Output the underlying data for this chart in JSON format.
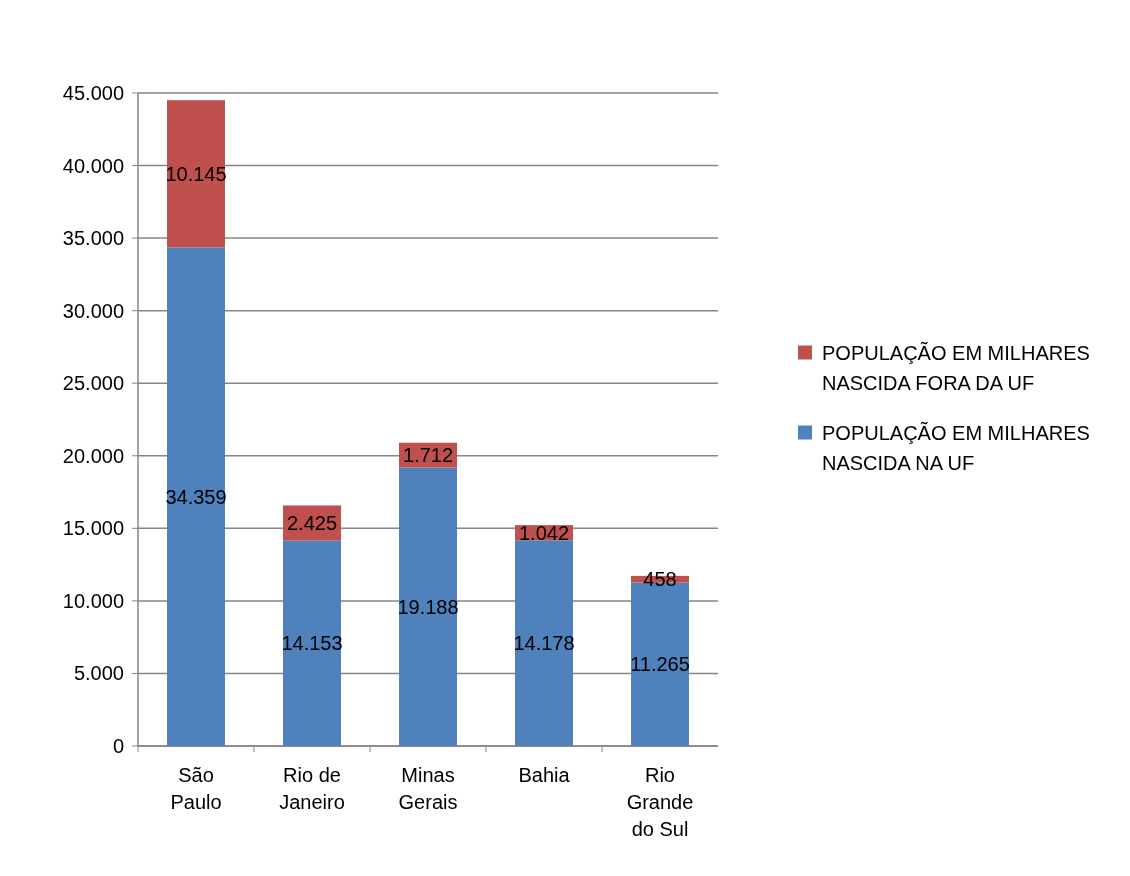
{
  "chart_data": {
    "type": "bar",
    "stacked": true,
    "categories": [
      "São Paulo",
      "Rio de Janeiro",
      "Minas Gerais",
      "Bahia",
      "Rio Grande do Sul"
    ],
    "series": [
      {
        "name": "POPULAÇÃO EM MILHARES NASCIDA NA UF",
        "color": "#4f81bd",
        "values": [
          34359,
          14153,
          19188,
          14178,
          11265
        ],
        "value_labels": [
          "34.359",
          "14.153",
          "19.188",
          "14.178",
          "11.265"
        ]
      },
      {
        "name": "POPULAÇÃO EM MILHARES NASCIDA FORA DA UF",
        "color": "#c0504d",
        "values": [
          10145,
          2425,
          1712,
          1042,
          458
        ],
        "value_labels": [
          "10.145",
          "2.425",
          "1.712",
          "1.042",
          "458"
        ]
      }
    ],
    "ylim": [
      0,
      45000
    ],
    "yticks": [
      0,
      {
        "value": 5000,
        "label": "5.000"
      },
      {
        "value": 10000,
        "label": "10.000"
      },
      {
        "value": 15000,
        "label": "15.000"
      },
      {
        "value": 20000,
        "label": "20.000"
      },
      {
        "value": 25000,
        "label": "25.000"
      },
      {
        "value": 30000,
        "label": "30.000"
      },
      {
        "value": 35000,
        "label": "35.000"
      },
      {
        "value": 40000,
        "label": "40.000"
      },
      {
        "value": 45000,
        "label": "45.000"
      }
    ],
    "grid": "y",
    "legend": "right"
  }
}
